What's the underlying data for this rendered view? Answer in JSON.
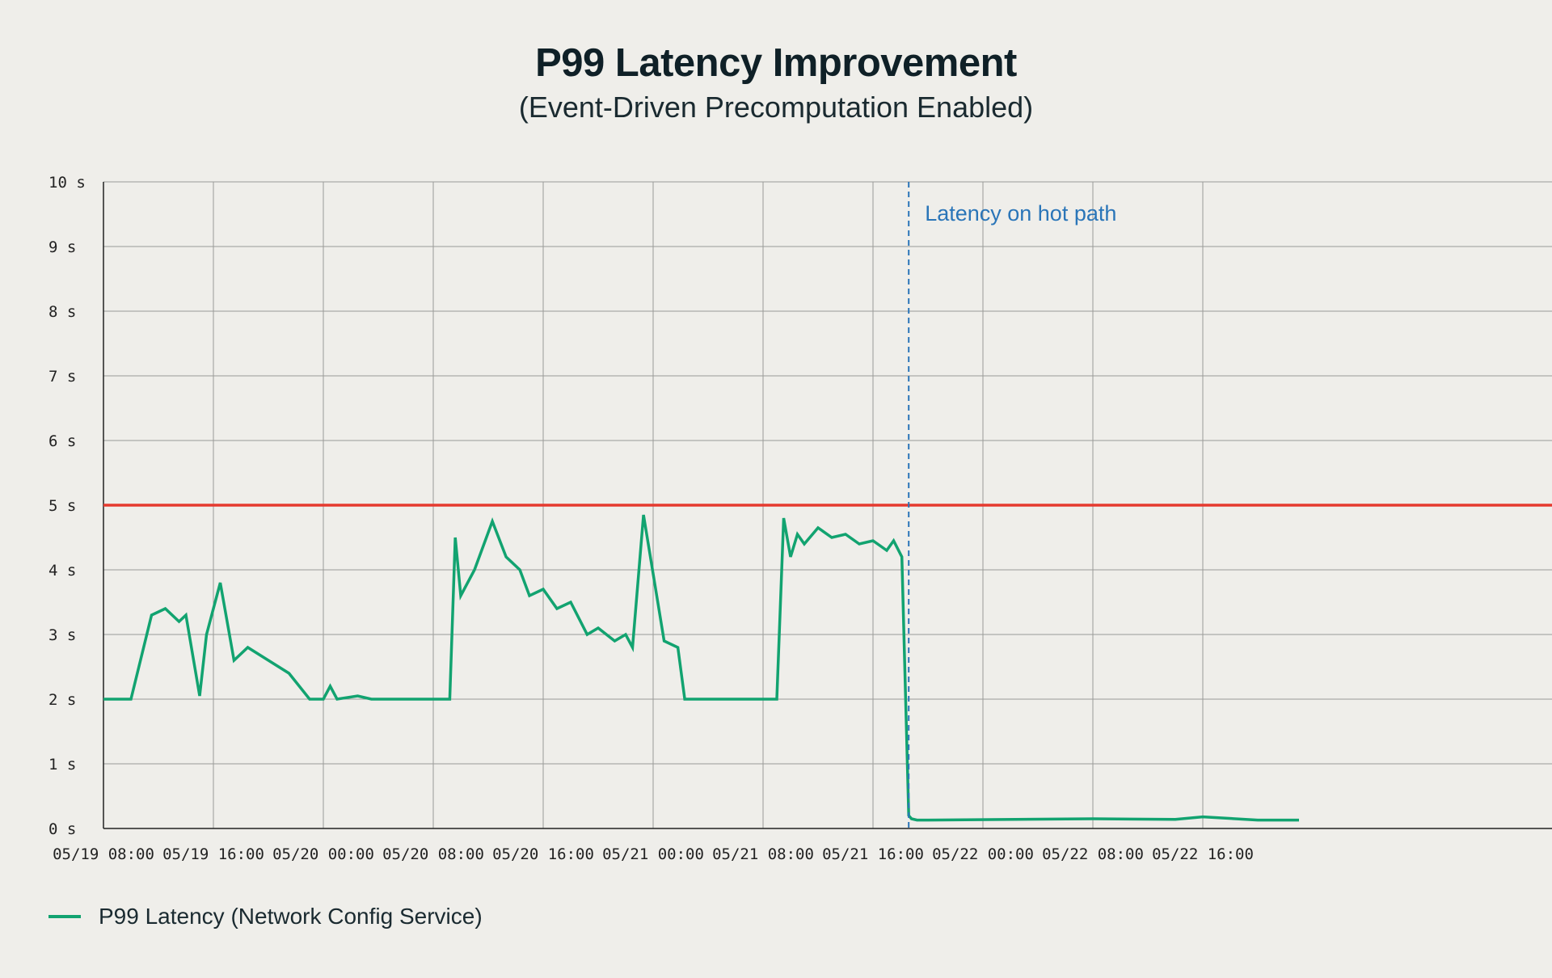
{
  "chart_data": {
    "type": "line",
    "title": "P99 Latency Improvement",
    "subtitle": "(Event-Driven Precomputation Enabled)",
    "x_ticks": [
      "05/19 08:00",
      "05/19 16:00",
      "05/20 00:00",
      "05/20 08:00",
      "05/20 16:00",
      "05/21 00:00",
      "05/21 08:00",
      "05/21 16:00",
      "05/22 00:00",
      "05/22 08:00",
      "05/22 16:00"
    ],
    "y_ticks": [
      "0 s",
      "1 s",
      "2 s",
      "3 s",
      "4 s",
      "5 s",
      "6 s",
      "7 s",
      "8 s",
      "9 s",
      "10 s"
    ],
    "ylim": [
      0,
      10
    ],
    "grid": true,
    "threshold": {
      "value": 5,
      "color": "#e53a2f"
    },
    "annotation": {
      "label": "Latency on hot path",
      "x_hours": 58.6,
      "color": "#2a75b8"
    },
    "series": [
      {
        "name": "P99 Latency (Network Config Service)",
        "color": "#12a370",
        "x_hours": [
          0,
          2,
          3.5,
          4.5,
          5.5,
          6,
          7,
          7.5,
          8.5,
          9.5,
          10.5,
          12,
          13.5,
          15,
          16,
          16.5,
          17,
          18.5,
          19.5,
          20.5,
          25.2,
          25.6,
          26,
          27,
          28.3,
          29.3,
          30.3,
          31,
          32,
          33,
          34,
          35.2,
          36,
          37.2,
          38,
          38.5,
          39.3,
          40.8,
          41.8,
          42.3,
          44.5,
          49,
          49.5,
          50,
          50.5,
          51,
          52,
          53,
          54,
          55,
          56,
          57,
          57.5,
          58.1,
          58.6,
          58.8,
          59.2,
          60,
          72,
          78,
          80,
          84,
          87
        ],
        "y_values": [
          2,
          2,
          3.3,
          3.4,
          3.2,
          3.3,
          2.05,
          3.0,
          3.8,
          2.6,
          2.8,
          2.6,
          2.4,
          2.0,
          2.0,
          2.2,
          2.0,
          2.05,
          2.0,
          2.0,
          2.0,
          4.5,
          3.6,
          4.0,
          4.75,
          4.2,
          4.0,
          3.6,
          3.7,
          3.4,
          3.5,
          3.0,
          3.1,
          2.9,
          3.0,
          2.8,
          4.85,
          2.9,
          2.8,
          2.0,
          2.0,
          2.0,
          4.8,
          4.2,
          4.55,
          4.4,
          4.65,
          4.5,
          4.55,
          4.4,
          4.45,
          4.3,
          4.45,
          4.2,
          0.2,
          0.15,
          0.13,
          0.13,
          0.15,
          0.14,
          0.18,
          0.13,
          0.13
        ]
      }
    ]
  }
}
